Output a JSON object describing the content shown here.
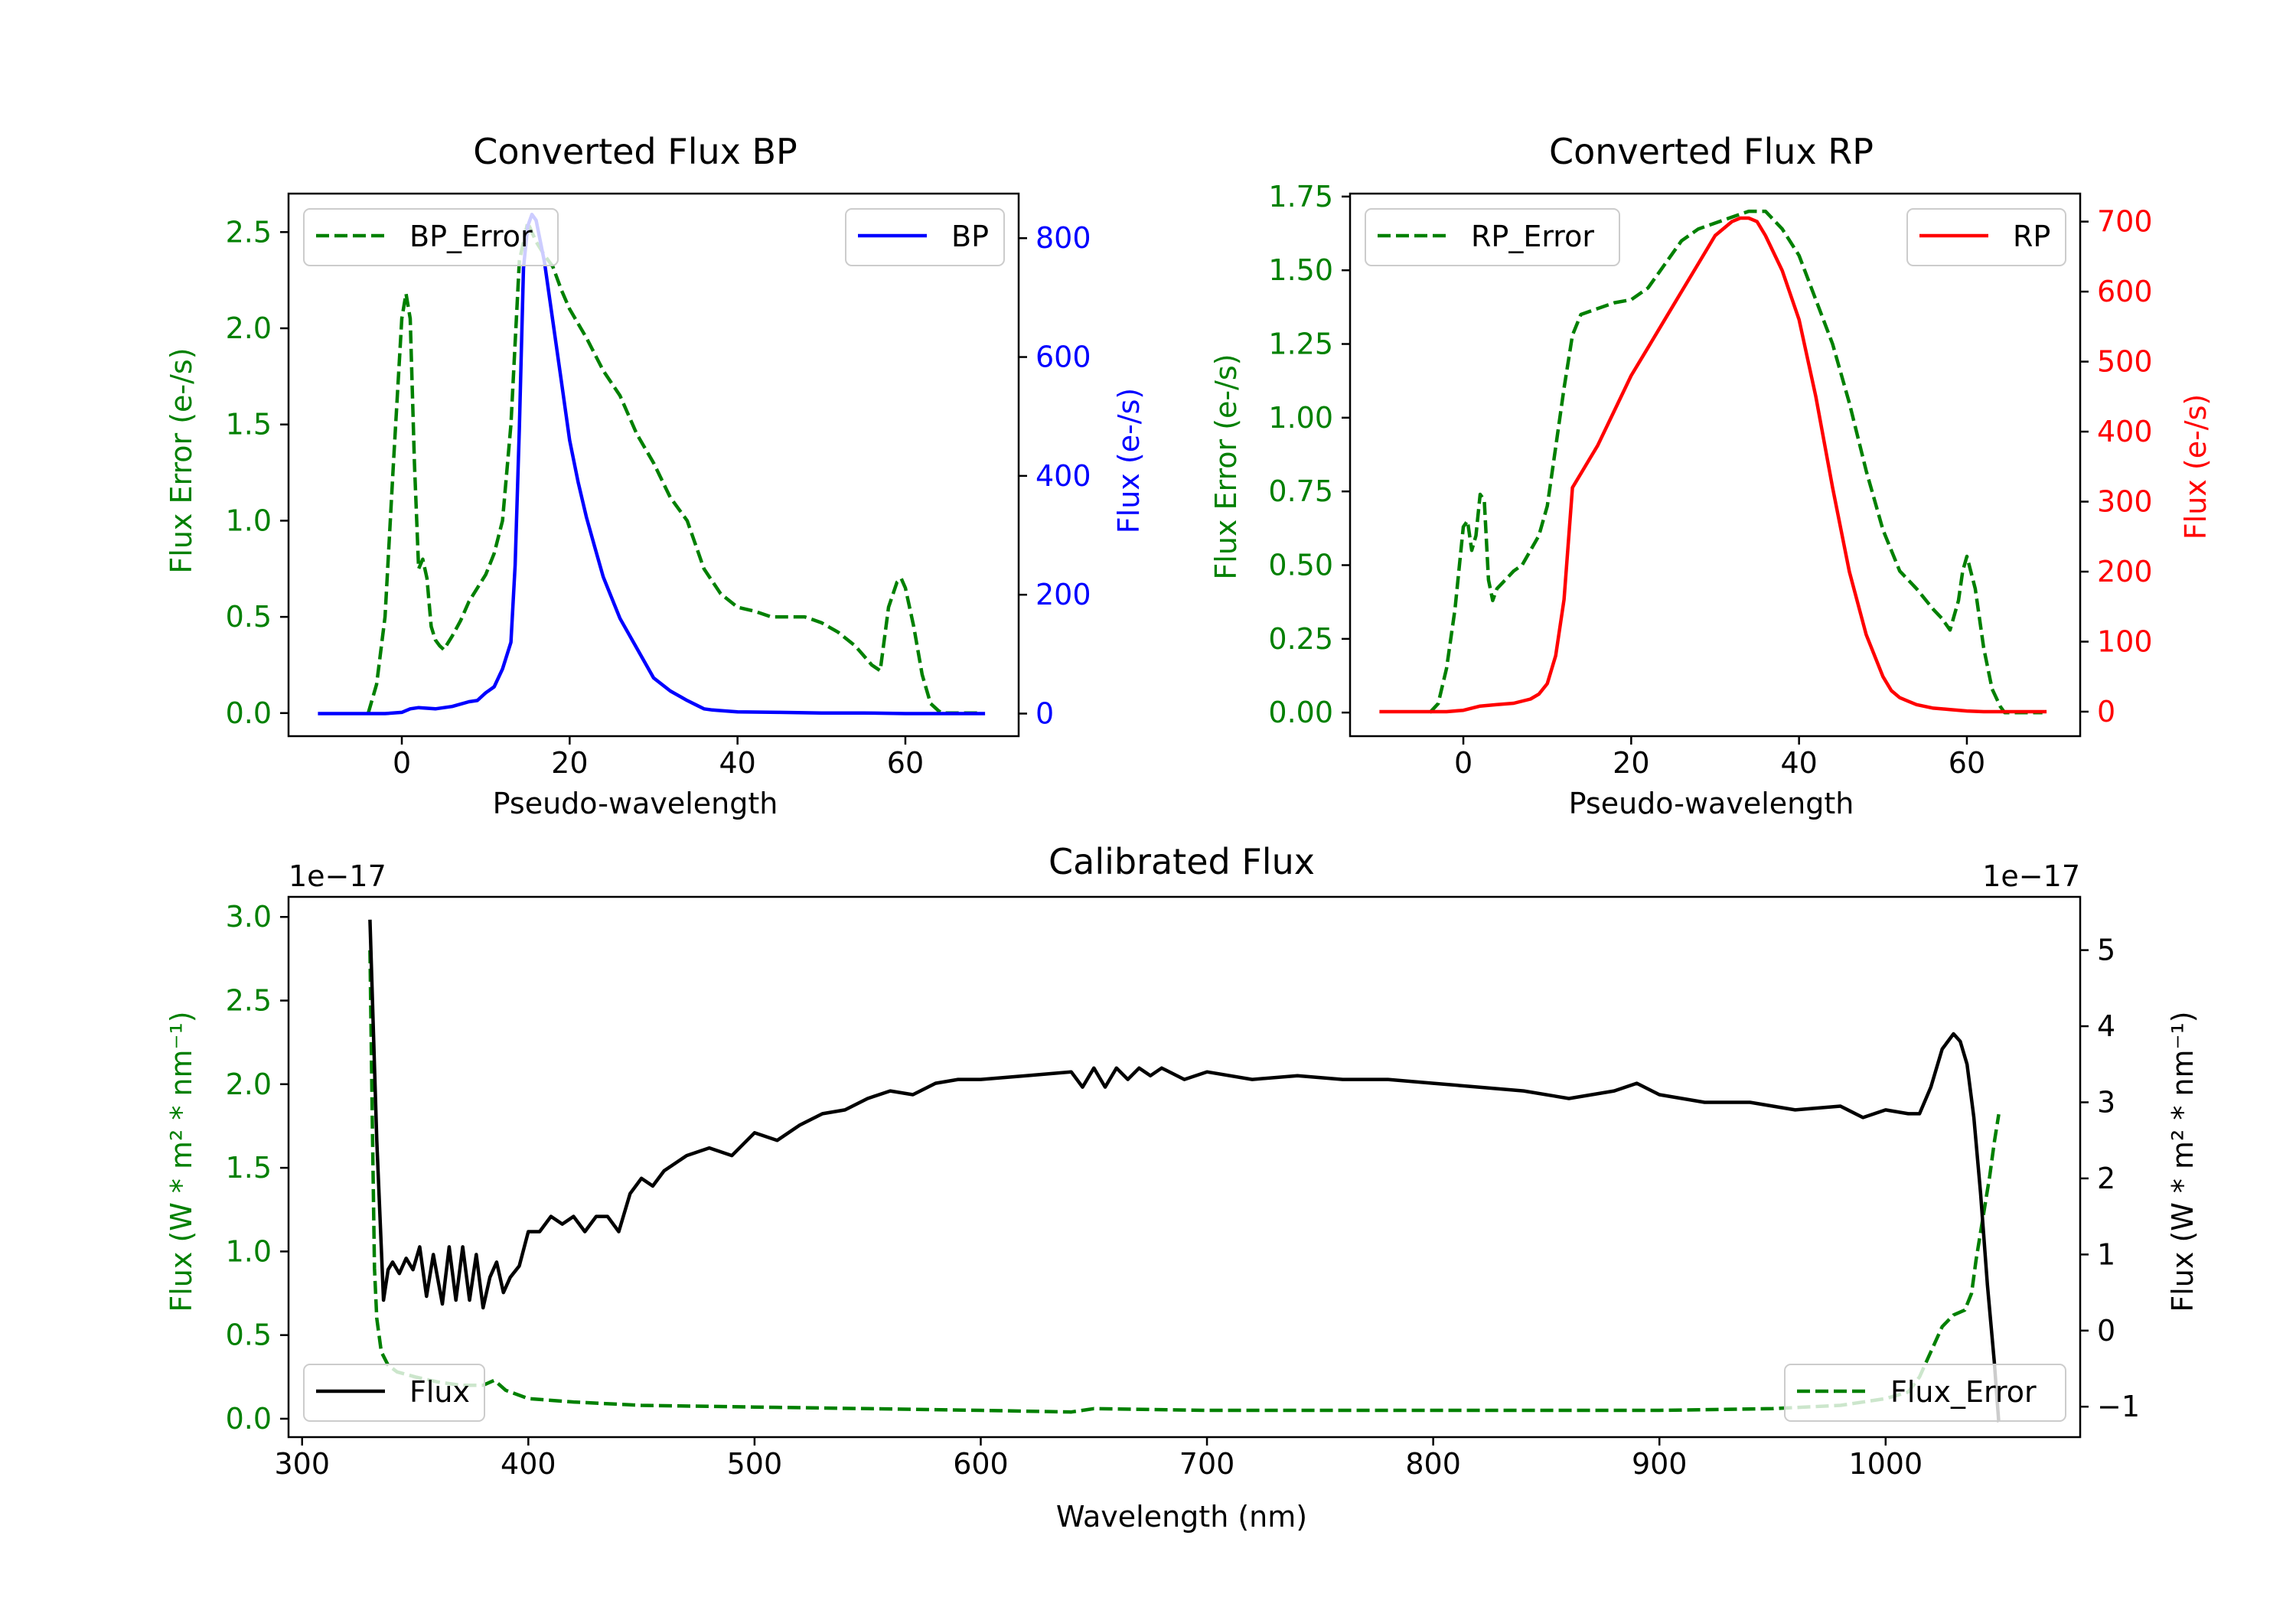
{
  "colors": {
    "green": "#008000",
    "blue": "#0000ff",
    "red": "#ff0000",
    "black": "#000000",
    "frame": "#000000"
  },
  "chart_data": [
    {
      "id": "bp",
      "type": "line",
      "title": "Converted Flux BP",
      "xlabel": "Pseudo-wavelength",
      "xlim": [
        -13.5,
        73.5
      ],
      "xticks": [
        0,
        20,
        40,
        60
      ],
      "left_axis": {
        "label": "Flux Error (e-/s)",
        "color": "green",
        "lim": [
          -0.12,
          2.7
        ],
        "ticks": [
          0.0,
          0.5,
          1.0,
          1.5,
          2.0,
          2.5
        ],
        "tick_labels": [
          "0.0",
          "0.5",
          "1.0",
          "1.5",
          "2.0",
          "2.5"
        ]
      },
      "right_axis": {
        "label": "Flux (e-/s)",
        "color": "blue",
        "lim": [
          -38,
          875
        ],
        "ticks": [
          0,
          200,
          400,
          600,
          800
        ],
        "tick_labels": [
          "0",
          "200",
          "400",
          "600",
          "800"
        ]
      },
      "series": [
        {
          "name": "BP_Error",
          "axis": "left",
          "style": "dashed",
          "color": "green",
          "x": [
            -4,
            -3,
            -2,
            -1,
            0,
            0.5,
            1,
            1.5,
            2,
            2.5,
            3,
            3.5,
            4,
            4.5,
            5,
            6,
            7,
            8,
            9,
            10,
            11,
            12,
            13,
            14,
            15,
            16,
            17,
            18,
            19,
            20,
            22,
            24,
            26,
            28,
            30,
            32,
            34,
            36,
            38,
            40,
            42,
            44,
            46,
            48,
            50,
            52,
            54,
            56,
            57,
            58,
            59,
            59.5,
            60,
            61,
            62,
            63,
            64,
            64.5,
            69
          ],
          "values": [
            0.0,
            0.15,
            0.5,
            1.3,
            2.05,
            2.18,
            2.05,
            1.3,
            0.75,
            0.8,
            0.7,
            0.45,
            0.38,
            0.35,
            0.33,
            0.4,
            0.48,
            0.58,
            0.65,
            0.72,
            0.83,
            1.0,
            1.5,
            2.35,
            2.55,
            2.45,
            2.38,
            2.32,
            2.2,
            2.1,
            1.95,
            1.78,
            1.65,
            1.45,
            1.3,
            1.12,
            1.0,
            0.75,
            0.62,
            0.55,
            0.53,
            0.5,
            0.5,
            0.5,
            0.47,
            0.42,
            0.35,
            0.25,
            0.22,
            0.55,
            0.68,
            0.7,
            0.65,
            0.45,
            0.2,
            0.05,
            0.01,
            0.0,
            0.0
          ]
        },
        {
          "name": "BP",
          "axis": "right",
          "style": "solid",
          "color": "blue",
          "x": [
            -10,
            -2,
            0,
            1,
            2,
            4,
            6,
            8,
            9,
            10,
            11,
            12,
            13,
            13.5,
            14,
            14.5,
            15,
            15.5,
            16,
            17,
            18,
            19,
            20,
            21,
            22,
            23,
            24,
            26,
            28,
            30,
            32,
            34,
            35,
            36,
            37,
            38,
            40,
            45,
            50,
            55,
            60,
            65,
            69.5
          ],
          "values": [
            0,
            0,
            2,
            8,
            10,
            8,
            12,
            20,
            22,
            35,
            45,
            75,
            120,
            250,
            480,
            750,
            820,
            840,
            830,
            760,
            660,
            560,
            460,
            390,
            330,
            280,
            230,
            160,
            110,
            60,
            38,
            22,
            15,
            8,
            6,
            5,
            3,
            2,
            1,
            1,
            0,
            0,
            0
          ]
        }
      ],
      "legends": [
        {
          "entries": [
            "BP_Error"
          ],
          "position": "upper left"
        },
        {
          "entries": [
            "BP"
          ],
          "position": "upper right"
        }
      ]
    },
    {
      "id": "rp",
      "type": "line",
      "title": "Converted Flux RP",
      "xlabel": "Pseudo-wavelength",
      "xlim": [
        -13.5,
        73.5
      ],
      "xticks": [
        0,
        20,
        40,
        60
      ],
      "left_axis": {
        "label": "Flux Error (e-/s)",
        "color": "green",
        "lim": [
          -0.08,
          1.76
        ],
        "ticks": [
          0.0,
          0.25,
          0.5,
          0.75,
          1.0,
          1.25,
          1.5,
          1.75
        ],
        "tick_labels": [
          "0.00",
          "0.25",
          "0.50",
          "0.75",
          "1.00",
          "1.25",
          "1.50",
          "1.75"
        ]
      },
      "right_axis": {
        "label": "Flux (e-/s)",
        "color": "red",
        "lim": [
          -35,
          740
        ],
        "ticks": [
          0,
          100,
          200,
          300,
          400,
          500,
          600,
          700
        ],
        "tick_labels": [
          "0",
          "100",
          "200",
          "300",
          "400",
          "500",
          "600",
          "700"
        ]
      },
      "series": [
        {
          "name": "RP_Error",
          "axis": "left",
          "style": "dashed",
          "color": "green",
          "x": [
            -4,
            -3,
            -2,
            -1,
            0,
            0.5,
            1,
            1.5,
            2,
            2.5,
            3,
            3.5,
            4,
            5,
            6,
            7,
            8,
            9,
            10,
            11,
            12,
            13,
            14,
            15,
            16,
            18,
            20,
            22,
            24,
            26,
            28,
            30,
            32,
            34,
            36,
            38,
            40,
            42,
            44,
            46,
            48,
            50,
            52,
            54,
            56,
            57,
            58,
            59,
            59.5,
            60,
            61,
            62,
            63,
            64,
            64.5,
            69
          ],
          "values": [
            0.0,
            0.03,
            0.15,
            0.35,
            0.63,
            0.65,
            0.55,
            0.6,
            0.74,
            0.72,
            0.45,
            0.38,
            0.42,
            0.45,
            0.48,
            0.5,
            0.55,
            0.6,
            0.7,
            0.9,
            1.1,
            1.28,
            1.35,
            1.36,
            1.37,
            1.39,
            1.4,
            1.44,
            1.52,
            1.6,
            1.64,
            1.66,
            1.68,
            1.7,
            1.7,
            1.64,
            1.55,
            1.4,
            1.25,
            1.05,
            0.82,
            0.62,
            0.48,
            0.42,
            0.35,
            0.32,
            0.28,
            0.38,
            0.48,
            0.53,
            0.42,
            0.22,
            0.08,
            0.02,
            0.0,
            0.0
          ]
        },
        {
          "name": "RP",
          "axis": "right",
          "style": "solid",
          "color": "red",
          "x": [
            -10,
            -2,
            0,
            2,
            4,
            6,
            8,
            9,
            10,
            11,
            12,
            12.5,
            13,
            14,
            15,
            16,
            18,
            20,
            22,
            24,
            26,
            28,
            30,
            32,
            33,
            34,
            35,
            36,
            38,
            40,
            42,
            44,
            46,
            48,
            50,
            51,
            52,
            53,
            54,
            56,
            58,
            60,
            62,
            64,
            69.5
          ],
          "values": [
            0,
            0,
            2,
            8,
            10,
            12,
            18,
            25,
            40,
            80,
            160,
            240,
            320,
            340,
            360,
            380,
            430,
            480,
            520,
            560,
            600,
            640,
            680,
            700,
            705,
            705,
            700,
            680,
            630,
            560,
            450,
            320,
            200,
            110,
            50,
            30,
            20,
            15,
            10,
            5,
            3,
            1,
            0,
            0,
            0
          ]
        }
      ],
      "legends": [
        {
          "entries": [
            "RP_Error"
          ],
          "position": "upper left"
        },
        {
          "entries": [
            "RP"
          ],
          "position": "upper right"
        }
      ]
    },
    {
      "id": "cal",
      "type": "line",
      "title": "Calibrated Flux",
      "xlabel": "Wavelength (nm)",
      "xlim": [
        294,
        1086
      ],
      "xticks": [
        300,
        400,
        500,
        600,
        700,
        800,
        900,
        1000
      ],
      "left_axis": {
        "label": "Flux (W * m² * nm⁻¹)",
        "color": "green",
        "lim": [
          -0.11,
          3.12
        ],
        "ticks": [
          0.0,
          0.5,
          1.0,
          1.5,
          2.0,
          2.5,
          3.0
        ],
        "tick_labels": [
          "0.0",
          "0.5",
          "1.0",
          "1.5",
          "2.0",
          "2.5",
          "3.0"
        ],
        "offset_label": "1e−17"
      },
      "right_axis": {
        "label": "Flux (W * m² * nm⁻¹)",
        "color": "black",
        "lim": [
          -1.4,
          5.7
        ],
        "ticks": [
          -1,
          0,
          1,
          2,
          3,
          4,
          5
        ],
        "tick_labels": [
          "−1",
          "0",
          "1",
          "2",
          "3",
          "4",
          "5"
        ],
        "offset_label": "1e−17"
      },
      "series": [
        {
          "name": "Flux_Error",
          "axis": "left",
          "style": "dashed",
          "color": "green",
          "x": [
            330,
            331,
            332,
            333,
            335,
            338,
            342,
            350,
            360,
            370,
            380,
            385,
            390,
            400,
            420,
            450,
            500,
            550,
            600,
            640,
            650,
            700,
            800,
            900,
            950,
            980,
            1000,
            1010,
            1015,
            1020,
            1025,
            1030,
            1035,
            1038,
            1040,
            1043,
            1046,
            1048,
            1050
          ],
          "values": [
            2.8,
            1.8,
            0.9,
            0.6,
            0.4,
            0.32,
            0.28,
            0.25,
            0.22,
            0.2,
            0.2,
            0.23,
            0.17,
            0.12,
            0.1,
            0.08,
            0.07,
            0.06,
            0.05,
            0.04,
            0.06,
            0.05,
            0.05,
            0.05,
            0.06,
            0.08,
            0.12,
            0.16,
            0.25,
            0.4,
            0.55,
            0.62,
            0.65,
            0.75,
            0.95,
            1.2,
            1.45,
            1.65,
            1.82
          ]
        },
        {
          "name": "Flux",
          "axis": "right",
          "style": "solid",
          "color": "black",
          "x": [
            330,
            333,
            336,
            338,
            340,
            343,
            346,
            349,
            352,
            355,
            358,
            362,
            365,
            368,
            371,
            374,
            377,
            380,
            383,
            386,
            389,
            392,
            396,
            400,
            405,
            410,
            415,
            420,
            425,
            430,
            435,
            440,
            445,
            450,
            455,
            460,
            470,
            480,
            490,
            500,
            510,
            520,
            530,
            540,
            550,
            560,
            570,
            580,
            590,
            600,
            620,
            640,
            645,
            650,
            655,
            660,
            665,
            670,
            675,
            680,
            690,
            700,
            720,
            740,
            760,
            780,
            800,
            820,
            840,
            860,
            880,
            890,
            900,
            920,
            940,
            960,
            980,
            990,
            1000,
            1010,
            1015,
            1020,
            1025,
            1030,
            1033,
            1036,
            1039,
            1042,
            1045,
            1048,
            1050
          ],
          "values": [
            5.4,
            2.5,
            0.4,
            0.8,
            0.9,
            0.75,
            0.95,
            0.8,
            1.1,
            0.45,
            1.0,
            0.35,
            1.1,
            0.4,
            1.1,
            0.4,
            1.0,
            0.3,
            0.7,
            0.9,
            0.5,
            0.7,
            0.85,
            1.3,
            1.3,
            1.5,
            1.4,
            1.5,
            1.3,
            1.5,
            1.5,
            1.3,
            1.8,
            2.0,
            1.9,
            2.1,
            2.3,
            2.4,
            2.3,
            2.6,
            2.5,
            2.7,
            2.85,
            2.9,
            3.05,
            3.15,
            3.1,
            3.25,
            3.3,
            3.3,
            3.35,
            3.4,
            3.2,
            3.45,
            3.2,
            3.45,
            3.3,
            3.45,
            3.35,
            3.45,
            3.3,
            3.4,
            3.3,
            3.35,
            3.3,
            3.3,
            3.25,
            3.2,
            3.15,
            3.05,
            3.15,
            3.25,
            3.1,
            3.0,
            3.0,
            2.9,
            2.95,
            2.8,
            2.9,
            2.85,
            2.85,
            3.2,
            3.7,
            3.9,
            3.8,
            3.5,
            2.8,
            1.8,
            0.6,
            -0.4,
            -1.2
          ]
        }
      ],
      "legends": [
        {
          "entries": [
            "Flux"
          ],
          "position": "lower left"
        },
        {
          "entries": [
            "Flux_Error"
          ],
          "position": "lower right"
        }
      ]
    }
  ]
}
